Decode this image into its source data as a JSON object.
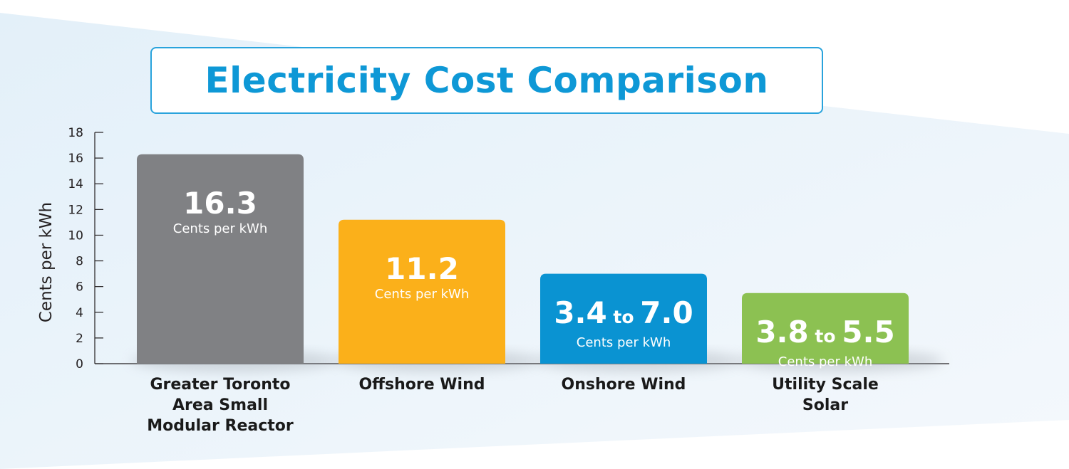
{
  "title": "Electricity Cost Comparison",
  "chart_data": {
    "type": "bar",
    "title": "Electricity Cost Comparison",
    "ylabel": "Cents per kWh",
    "xlabel": "",
    "ylim": [
      0,
      18
    ],
    "yticks": [
      0,
      2,
      4,
      6,
      8,
      10,
      12,
      14,
      16,
      18
    ],
    "categories": [
      "Greater Toronto\nArea Small\nModular Reactor",
      "Offshore Wind",
      "Onshore Wind",
      "Utility Scale\nSolar"
    ],
    "values": [
      16.3,
      11.2,
      7.0,
      5.5
    ],
    "ranges": [
      null,
      null,
      [
        3.4,
        7.0
      ],
      [
        3.8,
        5.5
      ]
    ],
    "bar_labels": [
      {
        "main": "16.3",
        "to": "",
        "end": "",
        "unit": "Cents per kWh"
      },
      {
        "main": "11.2",
        "to": "",
        "end": "",
        "unit": "Cents per kWh"
      },
      {
        "main": "3.4",
        "to": "to",
        "end": "7.0",
        "unit": "Cents per kWh"
      },
      {
        "main": "3.8",
        "to": "to",
        "end": "5.5",
        "unit": "Cents per kWh"
      }
    ],
    "colors": [
      "#808184",
      "#fbb01a",
      "#0a93d2",
      "#8cc152"
    ],
    "grid": false,
    "legend": "none"
  }
}
